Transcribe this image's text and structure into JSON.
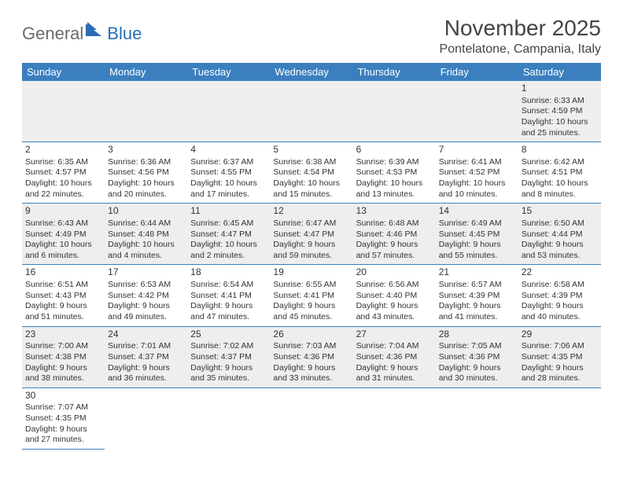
{
  "logo": {
    "part1": "General",
    "part2": "Blue"
  },
  "title": "November 2025",
  "location": "Pontelatone, Campania, Italy",
  "weekday_header_bg": "#3b7fbf",
  "weekday_header_fg": "#ffffff",
  "row_alt_bg": "#eeeeee",
  "border_color": "#3b7fbf",
  "weekdays": [
    "Sunday",
    "Monday",
    "Tuesday",
    "Wednesday",
    "Thursday",
    "Friday",
    "Saturday"
  ],
  "first_weekday_index": 6,
  "days": [
    {
      "n": 1,
      "sunrise": "6:33 AM",
      "sunset": "4:59 PM",
      "daylight": "10 hours and 25 minutes."
    },
    {
      "n": 2,
      "sunrise": "6:35 AM",
      "sunset": "4:57 PM",
      "daylight": "10 hours and 22 minutes."
    },
    {
      "n": 3,
      "sunrise": "6:36 AM",
      "sunset": "4:56 PM",
      "daylight": "10 hours and 20 minutes."
    },
    {
      "n": 4,
      "sunrise": "6:37 AM",
      "sunset": "4:55 PM",
      "daylight": "10 hours and 17 minutes."
    },
    {
      "n": 5,
      "sunrise": "6:38 AM",
      "sunset": "4:54 PM",
      "daylight": "10 hours and 15 minutes."
    },
    {
      "n": 6,
      "sunrise": "6:39 AM",
      "sunset": "4:53 PM",
      "daylight": "10 hours and 13 minutes."
    },
    {
      "n": 7,
      "sunrise": "6:41 AM",
      "sunset": "4:52 PM",
      "daylight": "10 hours and 10 minutes."
    },
    {
      "n": 8,
      "sunrise": "6:42 AM",
      "sunset": "4:51 PM",
      "daylight": "10 hours and 8 minutes."
    },
    {
      "n": 9,
      "sunrise": "6:43 AM",
      "sunset": "4:49 PM",
      "daylight": "10 hours and 6 minutes."
    },
    {
      "n": 10,
      "sunrise": "6:44 AM",
      "sunset": "4:48 PM",
      "daylight": "10 hours and 4 minutes."
    },
    {
      "n": 11,
      "sunrise": "6:45 AM",
      "sunset": "4:47 PM",
      "daylight": "10 hours and 2 minutes."
    },
    {
      "n": 12,
      "sunrise": "6:47 AM",
      "sunset": "4:47 PM",
      "daylight": "9 hours and 59 minutes."
    },
    {
      "n": 13,
      "sunrise": "6:48 AM",
      "sunset": "4:46 PM",
      "daylight": "9 hours and 57 minutes."
    },
    {
      "n": 14,
      "sunrise": "6:49 AM",
      "sunset": "4:45 PM",
      "daylight": "9 hours and 55 minutes."
    },
    {
      "n": 15,
      "sunrise": "6:50 AM",
      "sunset": "4:44 PM",
      "daylight": "9 hours and 53 minutes."
    },
    {
      "n": 16,
      "sunrise": "6:51 AM",
      "sunset": "4:43 PM",
      "daylight": "9 hours and 51 minutes."
    },
    {
      "n": 17,
      "sunrise": "6:53 AM",
      "sunset": "4:42 PM",
      "daylight": "9 hours and 49 minutes."
    },
    {
      "n": 18,
      "sunrise": "6:54 AM",
      "sunset": "4:41 PM",
      "daylight": "9 hours and 47 minutes."
    },
    {
      "n": 19,
      "sunrise": "6:55 AM",
      "sunset": "4:41 PM",
      "daylight": "9 hours and 45 minutes."
    },
    {
      "n": 20,
      "sunrise": "6:56 AM",
      "sunset": "4:40 PM",
      "daylight": "9 hours and 43 minutes."
    },
    {
      "n": 21,
      "sunrise": "6:57 AM",
      "sunset": "4:39 PM",
      "daylight": "9 hours and 41 minutes."
    },
    {
      "n": 22,
      "sunrise": "6:58 AM",
      "sunset": "4:39 PM",
      "daylight": "9 hours and 40 minutes."
    },
    {
      "n": 23,
      "sunrise": "7:00 AM",
      "sunset": "4:38 PM",
      "daylight": "9 hours and 38 minutes."
    },
    {
      "n": 24,
      "sunrise": "7:01 AM",
      "sunset": "4:37 PM",
      "daylight": "9 hours and 36 minutes."
    },
    {
      "n": 25,
      "sunrise": "7:02 AM",
      "sunset": "4:37 PM",
      "daylight": "9 hours and 35 minutes."
    },
    {
      "n": 26,
      "sunrise": "7:03 AM",
      "sunset": "4:36 PM",
      "daylight": "9 hours and 33 minutes."
    },
    {
      "n": 27,
      "sunrise": "7:04 AM",
      "sunset": "4:36 PM",
      "daylight": "9 hours and 31 minutes."
    },
    {
      "n": 28,
      "sunrise": "7:05 AM",
      "sunset": "4:36 PM",
      "daylight": "9 hours and 30 minutes."
    },
    {
      "n": 29,
      "sunrise": "7:06 AM",
      "sunset": "4:35 PM",
      "daylight": "9 hours and 28 minutes."
    },
    {
      "n": 30,
      "sunrise": "7:07 AM",
      "sunset": "4:35 PM",
      "daylight": "9 hours and 27 minutes."
    }
  ],
  "labels": {
    "sunrise": "Sunrise:",
    "sunset": "Sunset:",
    "daylight": "Daylight:"
  }
}
